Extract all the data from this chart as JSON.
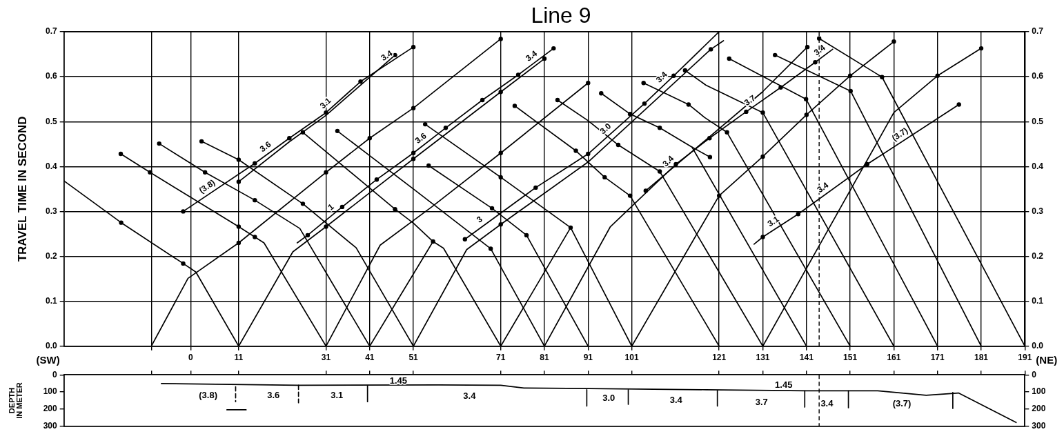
{
  "chart_data": [
    {
      "type": "line",
      "title": "Line 9",
      "ylabel": "TRAVEL TIME IN SECOND",
      "xlim": [
        -29,
        191
      ],
      "xticks": [
        {
          "value": -9,
          "label": null
        },
        0,
        11,
        31,
        41,
        51,
        71,
        81,
        91,
        101,
        121,
        131,
        141,
        151,
        161,
        171,
        181,
        191
      ],
      "ylim": [
        0,
        0.7
      ],
      "yticks": [
        {
          "value": 0,
          "label": "0.0"
        },
        {
          "value": 0.1,
          "label": "0.1"
        },
        {
          "value": 0.2,
          "label": "0.2"
        },
        {
          "value": 0.3,
          "label": "0.3"
        },
        {
          "value": 0.4,
          "label": "0.4"
        },
        {
          "value": 0.5,
          "label": "0.5"
        },
        {
          "value": 0.6,
          "label": "0.6"
        },
        {
          "value": 0.7,
          "label": "0.7"
        }
      ],
      "y2lim": [
        0,
        0.7
      ],
      "y2ticks": [
        {
          "value": 0,
          "label": "0.0"
        },
        {
          "value": 0.1,
          "label": "0.1"
        },
        {
          "value": 0.2,
          "label": "0.2"
        },
        {
          "value": 0.3,
          "label": "0.3"
        },
        {
          "value": 0.4,
          "label": "0.4"
        },
        {
          "value": 0.5,
          "label": "0.5"
        },
        {
          "value": 0.6,
          "label": "0.6"
        },
        {
          "value": 0.7,
          "label": "0.7"
        }
      ],
      "grid": true,
      "series": [
        {
          "type": "line",
          "color": "#000000",
          "x": [
            -9,
            -0.6,
            11,
            31,
            41,
            51,
            71
          ],
          "values": [
            0,
            0.151,
            0.23,
            0.387,
            0.463,
            0.53,
            0.684
          ]
        },
        {
          "type": "line",
          "color": "#000000",
          "x": [
            11,
            1.2,
            -1.7,
            -15.9,
            -29
          ],
          "values": [
            0,
            0.165,
            0.184,
            0.275,
            0.368
          ]
        },
        {
          "type": "line",
          "color": "#000000",
          "x": [
            11,
            23.4,
            31,
            51,
            71,
            81
          ],
          "values": [
            0,
            0.21,
            0.266,
            0.417,
            0.566,
            0.64
          ]
        },
        {
          "type": "line",
          "color": "#000000",
          "x": [
            24.4,
            26.8,
            34.7,
            42.6,
            51,
            58.4,
            66.8,
            75,
            83.1
          ],
          "values": [
            0.23,
            0.247,
            0.31,
            0.371,
            0.43,
            0.486,
            0.548,
            0.604,
            0.663
          ]
        },
        {
          "type": "line",
          "color": "#000000",
          "x": [
            31,
            16.8,
            14.7,
            11,
            -9.3,
            -16
          ],
          "values": [
            0,
            0.23,
            0.243,
            0.266,
            0.387,
            0.428
          ]
        },
        {
          "type": "line",
          "color": "#000000",
          "x": [
            31,
            43.4,
            55.2,
            71,
            91
          ],
          "values": [
            0,
            0.225,
            0.31,
            0.43,
            0.586
          ]
        },
        {
          "type": "line",
          "color": "#000000",
          "x": [
            41,
            25,
            14.7,
            3.3,
            -7.2
          ],
          "values": [
            0,
            0.262,
            0.325,
            0.387,
            0.451
          ]
        },
        {
          "type": "line",
          "color": "#000000",
          "x": [
            41,
            55.5
          ],
          "values": [
            0,
            0.233
          ]
        },
        {
          "type": "line",
          "color": "#000000",
          "x": [
            51,
            37.9,
            25.7,
            11,
            2.5
          ],
          "values": [
            0,
            0.219,
            0.317,
            0.415,
            0.456
          ]
        },
        {
          "type": "line",
          "color": "#000000",
          "x": [
            -1.7,
            14.7,
            22.6,
            31,
            38.9,
            51
          ],
          "values": [
            0.3,
            0.407,
            0.463,
            0.52,
            0.589,
            0.666
          ]
        },
        {
          "type": "line",
          "color": "#000000",
          "x": [
            11,
            22.6,
            31,
            46.8
          ],
          "values": [
            0.366,
            0.455,
            0.514,
            0.648
          ]
        },
        {
          "type": "line",
          "color": "#000000",
          "x": [
            71,
            57.9,
            55.5,
            51,
            46.8,
            25.7
          ],
          "values": [
            0,
            0.218,
            0.233,
            0.274,
            0.305,
            0.476
          ]
        },
        {
          "type": "line",
          "color": "#000000",
          "x": [
            71,
            87
          ],
          "values": [
            0,
            0.264
          ]
        },
        {
          "type": "line",
          "color": "#000000",
          "x": [
            81,
            68.7,
            51,
            41,
            33.6
          ],
          "values": [
            0,
            0.217,
            0.35,
            0.424,
            0.479
          ]
        },
        {
          "type": "line",
          "color": "#000000",
          "x": [
            91,
            76.9,
            69,
            54.5
          ],
          "values": [
            0,
            0.247,
            0.307,
            0.402
          ]
        },
        {
          "type": "line",
          "color": "#000000",
          "x": [
            101,
            87,
            71,
            53.7
          ],
          "values": [
            0,
            0.264,
            0.376,
            0.494
          ]
        },
        {
          "type": "line",
          "color": "#000000",
          "x": [
            121,
            100.6,
            94.8,
            88.2,
            74.2
          ],
          "values": [
            0,
            0.335,
            0.376,
            0.435,
            0.535
          ]
        },
        {
          "type": "line",
          "color": "#000000",
          "x": [
            131,
            107.4,
            97.9,
            91,
            84
          ],
          "values": [
            0,
            0.389,
            0.448,
            0.502,
            0.548
          ]
        },
        {
          "type": "line",
          "color": "#000000",
          "x": [
            141,
            114.8,
            107.4,
            100.6,
            94
          ],
          "values": [
            0,
            0.443,
            0.486,
            0.517,
            0.563
          ]
        },
        {
          "type": "line",
          "color": "#000000",
          "x": [
            114.8,
            118.9
          ],
          "values": [
            0.443,
            0.421
          ]
        },
        {
          "type": "line",
          "color": "#000000",
          "x": [
            151,
            122.8,
            117.7,
            114,
            103.7
          ],
          "values": [
            0,
            0.476,
            0.509,
            0.538,
            0.586
          ]
        },
        {
          "type": "line",
          "color": "#000000",
          "x": [
            161,
            131,
            118,
            113.2
          ],
          "values": [
            0,
            0.52,
            0.581,
            0.614
          ]
        },
        {
          "type": "line",
          "color": "#000000",
          "x": [
            171,
            140.9,
            123.3
          ],
          "values": [
            0,
            0.55,
            0.64
          ]
        },
        {
          "type": "line",
          "color": "#000000",
          "x": [
            181,
            151.1,
            133.8
          ],
          "values": [
            0,
            0.568,
            0.648
          ]
        },
        {
          "type": "line",
          "color": "#000000",
          "x": [
            191,
            158.3,
            143.9
          ],
          "values": [
            0,
            0.599,
            0.685
          ]
        },
        {
          "type": "line",
          "color": "#000000",
          "x": [
            101,
            121,
            131,
            141,
            151,
            161
          ],
          "values": [
            0,
            0.335,
            0.422,
            0.515,
            0.602,
            0.678
          ]
        },
        {
          "type": "line",
          "color": "#000000",
          "x": [
            131,
            161,
            171,
            181
          ],
          "values": [
            0,
            0.52,
            0.602,
            0.663
          ]
        },
        {
          "type": "line",
          "color": "#000000",
          "x": [
            81,
            96.1,
            111.1,
            118.8,
            127.2,
            135.1,
            143,
            147
          ],
          "values": [
            0,
            0.266,
            0.405,
            0.463,
            0.522,
            0.576,
            0.632,
            0.661
          ]
        },
        {
          "type": "line",
          "color": "#000000",
          "x": [
            104.2,
            117.8,
            130.9,
            141.2
          ],
          "values": [
            0.346,
            0.458,
            0.566,
            0.666
          ]
        },
        {
          "type": "line",
          "color": "#000000",
          "x": [
            62.8,
            79,
            91,
            103.9,
            110.6,
            121
          ],
          "values": [
            0.238,
            0.353,
            0.428,
            0.54,
            0.602,
            0.7
          ]
        },
        {
          "type": "line",
          "color": "#000000",
          "x": [
            51,
            63.2,
            71,
            91,
            119.1,
            122
          ],
          "values": [
            0,
            0.215,
            0.271,
            0.41,
            0.661,
            0.68
          ]
        },
        {
          "type": "line",
          "color": "#000000",
          "x": [
            129,
            131,
            139.1,
            154.9,
            175.9
          ],
          "values": [
            0.227,
            0.243,
            0.294,
            0.405,
            0.538
          ]
        },
        {
          "type": "scatter",
          "marker": "circle",
          "color": "#000000",
          "x": [
            11,
            31,
            41,
            51,
            71,
            -1.7,
            -15.9,
            31,
            51,
            71,
            81,
            26.8,
            34.7,
            42.6,
            51,
            58.4,
            66.8,
            75,
            83.1,
            14.7,
            11,
            -9.3,
            -16,
            71,
            91,
            14.7,
            3.3,
            -7.2,
            25.7,
            11,
            2.5,
            -1.7,
            14.7,
            22.6,
            31,
            38.9,
            51,
            11,
            46.8,
            55.5,
            46.8,
            25.7,
            68.7,
            33.6,
            76.9,
            69,
            54.5,
            87,
            71,
            53.7,
            100.6,
            94.8,
            88.2,
            74.2,
            107.4,
            97.9,
            84,
            107.4,
            100.6,
            94,
            122.8,
            114,
            103.7,
            131,
            113.2,
            140.9,
            123.3,
            151.1,
            133.8,
            158.3,
            143.9,
            121,
            131,
            141,
            151,
            161,
            171,
            181,
            111.1,
            118.8,
            127.2,
            135.1,
            143,
            62.8,
            79,
            91,
            103.9,
            110.6,
            71,
            119.1,
            131,
            139.1,
            154.9,
            175.9,
            104.2,
            141.2,
            118.9
          ],
          "values": [
            0.23,
            0.387,
            0.463,
            0.53,
            0.684,
            0.184,
            0.275,
            0.266,
            0.417,
            0.566,
            0.64,
            0.247,
            0.31,
            0.371,
            0.43,
            0.486,
            0.548,
            0.604,
            0.663,
            0.243,
            0.266,
            0.387,
            0.428,
            0.43,
            0.586,
            0.325,
            0.387,
            0.451,
            0.317,
            0.415,
            0.456,
            0.3,
            0.407,
            0.463,
            0.52,
            0.589,
            0.666,
            0.366,
            0.648,
            0.233,
            0.305,
            0.476,
            0.217,
            0.479,
            0.247,
            0.307,
            0.402,
            0.264,
            0.376,
            0.494,
            0.335,
            0.376,
            0.435,
            0.535,
            0.389,
            0.448,
            0.548,
            0.486,
            0.517,
            0.563,
            0.476,
            0.538,
            0.586,
            0.52,
            0.614,
            0.55,
            0.64,
            0.568,
            0.648,
            0.599,
            0.685,
            0.335,
            0.422,
            0.515,
            0.602,
            0.678,
            0.602,
            0.663,
            0.405,
            0.463,
            0.522,
            0.576,
            0.632,
            0.238,
            0.353,
            0.428,
            0.54,
            0.602,
            0.271,
            0.661,
            0.243,
            0.294,
            0.405,
            0.538,
            0.346,
            0.666,
            0.421
          ]
        }
      ],
      "ref_lines": [
        {
          "axis": "x",
          "value": 143.9,
          "line_style": "dashed",
          "color": "#000000"
        }
      ],
      "annotations": [
        "(SW)",
        "(NE)",
        {
          "text": "(3.8)",
          "x": 4.7,
          "y": 0.342
        },
        {
          "text": "3.6",
          "x": 18.1,
          "y": 0.431
        },
        {
          "text": "3.1",
          "x": 32,
          "y": 0.529
        },
        {
          "text": "3.4",
          "x": 45.8,
          "y": 0.633
        },
        {
          "text": "3.6",
          "x": 53.7,
          "y": 0.45
        },
        {
          "text": "1",
          "x": 33.2,
          "y": 0.297
        },
        {
          "text": "3",
          "x": 67.1,
          "y": 0.269
        },
        {
          "text": "3.4",
          "x": 79,
          "y": 0.633
        },
        {
          "text": "3.0",
          "x": 96.1,
          "y": 0.472
        },
        {
          "text": "3.4",
          "x": 109,
          "y": 0.587
        },
        {
          "text": "3.4",
          "x": 110.5,
          "y": 0.4
        },
        {
          "text": "3.7",
          "x": 129,
          "y": 0.534
        },
        {
          "text": "3.4",
          "x": 145,
          "y": 0.646
        },
        {
          "text": "(3.7)",
          "x": 163.3,
          "y": 0.458
        },
        {
          "text": "3.4",
          "x": 145.7,
          "y": 0.34
        },
        {
          "text": "3.1",
          "x": 134.3,
          "y": 0.264
        }
      ]
    },
    {
      "type": "line",
      "ylabel": "DEPTH IN METER",
      "tick_labels": "y",
      "xlim": [
        -29,
        191
      ],
      "xticks": [
        {
          "value": -9,
          "label": null
        },
        0,
        11,
        31,
        41,
        51,
        71,
        81,
        91,
        101,
        121,
        131,
        141,
        151,
        161,
        171,
        181,
        191
      ],
      "ylim": [
        300,
        0
      ],
      "yticks": [
        0,
        100,
        200,
        300
      ],
      "y2lim": [
        300,
        0
      ],
      "y2ticks": [
        0,
        100,
        200,
        300
      ],
      "series": [
        {
          "type": "line",
          "color": "#000000",
          "x": [
            -6.7,
            24.7,
            56.8,
            71,
            76.3,
            91,
            118,
            140.9,
            157.3,
            168.4,
            175.8,
            189
          ],
          "values": [
            51,
            61,
            59,
            61,
            77,
            80,
            87,
            93,
            93,
            119,
            106,
            278
          ]
        },
        {
          "type": "line",
          "color": "#000000",
          "line_style": "dashed",
          "x": [
            10.3,
            10.3
          ],
          "values": [
            70,
            157
          ]
        },
        {
          "type": "line",
          "color": "#000000",
          "line_style": "dashed",
          "x": [
            24.7,
            24.7
          ],
          "values": [
            61,
            163
          ]
        },
        {
          "type": "line",
          "color": "#000000",
          "x": [
            40.5,
            40.5
          ],
          "values": [
            65,
            157
          ]
        },
        {
          "type": "line",
          "color": "#000000",
          "x": [
            90.7,
            90.7
          ],
          "values": [
            87,
            182
          ]
        },
        {
          "type": "line",
          "color": "#000000",
          "x": [
            100.2,
            100.2
          ],
          "values": [
            87,
            172
          ]
        },
        {
          "type": "line",
          "color": "#000000",
          "x": [
            120.6,
            120.6
          ],
          "values": [
            93,
            182
          ]
        },
        {
          "type": "line",
          "color": "#000000",
          "x": [
            140.6,
            140.6
          ],
          "values": [
            93,
            188
          ]
        },
        {
          "type": "line",
          "color": "#000000",
          "x": [
            150.6,
            150.6
          ],
          "values": [
            93,
            192
          ]
        },
        {
          "type": "line",
          "color": "#000000",
          "x": [
            174.5,
            174.5
          ],
          "values": [
            103,
            196
          ]
        },
        {
          "type": "line",
          "color": "#000000",
          "x": [
            8.3,
            12.7
          ],
          "values": [
            204,
            204
          ]
        }
      ],
      "ref_lines": [
        {
          "axis": "x",
          "value": 143.9,
          "line_style": "dashed",
          "color": "#000000"
        }
      ],
      "annotations": [
        "(3.8)",
        "3.6",
        "3.1",
        "1.45",
        "3.4",
        "3.0",
        "3.4",
        "1.45",
        "3.7",
        "3.4",
        "(3.7)"
      ]
    }
  ]
}
